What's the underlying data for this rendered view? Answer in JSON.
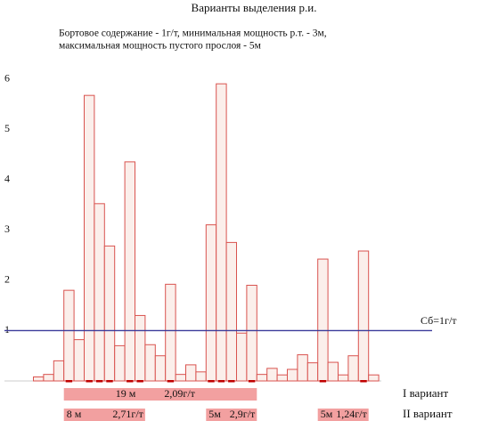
{
  "chart_data": {
    "type": "bar",
    "title": "Варианты выделения р.и.",
    "subtitle": [
      "Бортовое содержание - 1г/т, минимальная мощность р.т. - 3м,",
      "максимальная мощность пустого прослоя - 5м"
    ],
    "categories": [
      null,
      null,
      null,
      null,
      null,
      null,
      null,
      null,
      null,
      null,
      null,
      null,
      null,
      null,
      null,
      null,
      null,
      null,
      null,
      null,
      null,
      null,
      null,
      null,
      null,
      null,
      null,
      null,
      null,
      null,
      null,
      null,
      null,
      null
    ],
    "values": [
      0.08,
      0.13,
      0.4,
      1.8,
      0.82,
      5.67,
      3.52,
      2.68,
      0.7,
      4.35,
      1.3,
      0.72,
      0.5,
      1.92,
      0.13,
      0.32,
      0.18,
      3.1,
      5.9,
      2.75,
      0.95,
      1.9,
      0.13,
      0.25,
      0.12,
      0.23,
      0.52,
      0.36,
      2.42,
      0.37,
      0.12,
      0.5,
      2.58,
      0.12
    ],
    "color": "#fbefeb",
    "edge_color": "#d9534f",
    "ylim": [
      0,
      6
    ],
    "yticks": [
      1,
      2,
      3,
      4,
      5,
      6
    ],
    "threshold": 1,
    "threshold_label": "Сб=1г/т",
    "threshold_color": "#3a3a9a",
    "variants": [
      {
        "label": "I вариант",
        "segments": [
          [
            "19 м",
            "2,09г/т"
          ]
        ]
      },
      {
        "label": "II вариант",
        "segments": [
          [
            "8 м",
            "2,71г/т"
          ],
          [
            "5м",
            "2,9г/т"
          ],
          [
            "5м",
            "1,24г/т"
          ]
        ]
      }
    ]
  }
}
